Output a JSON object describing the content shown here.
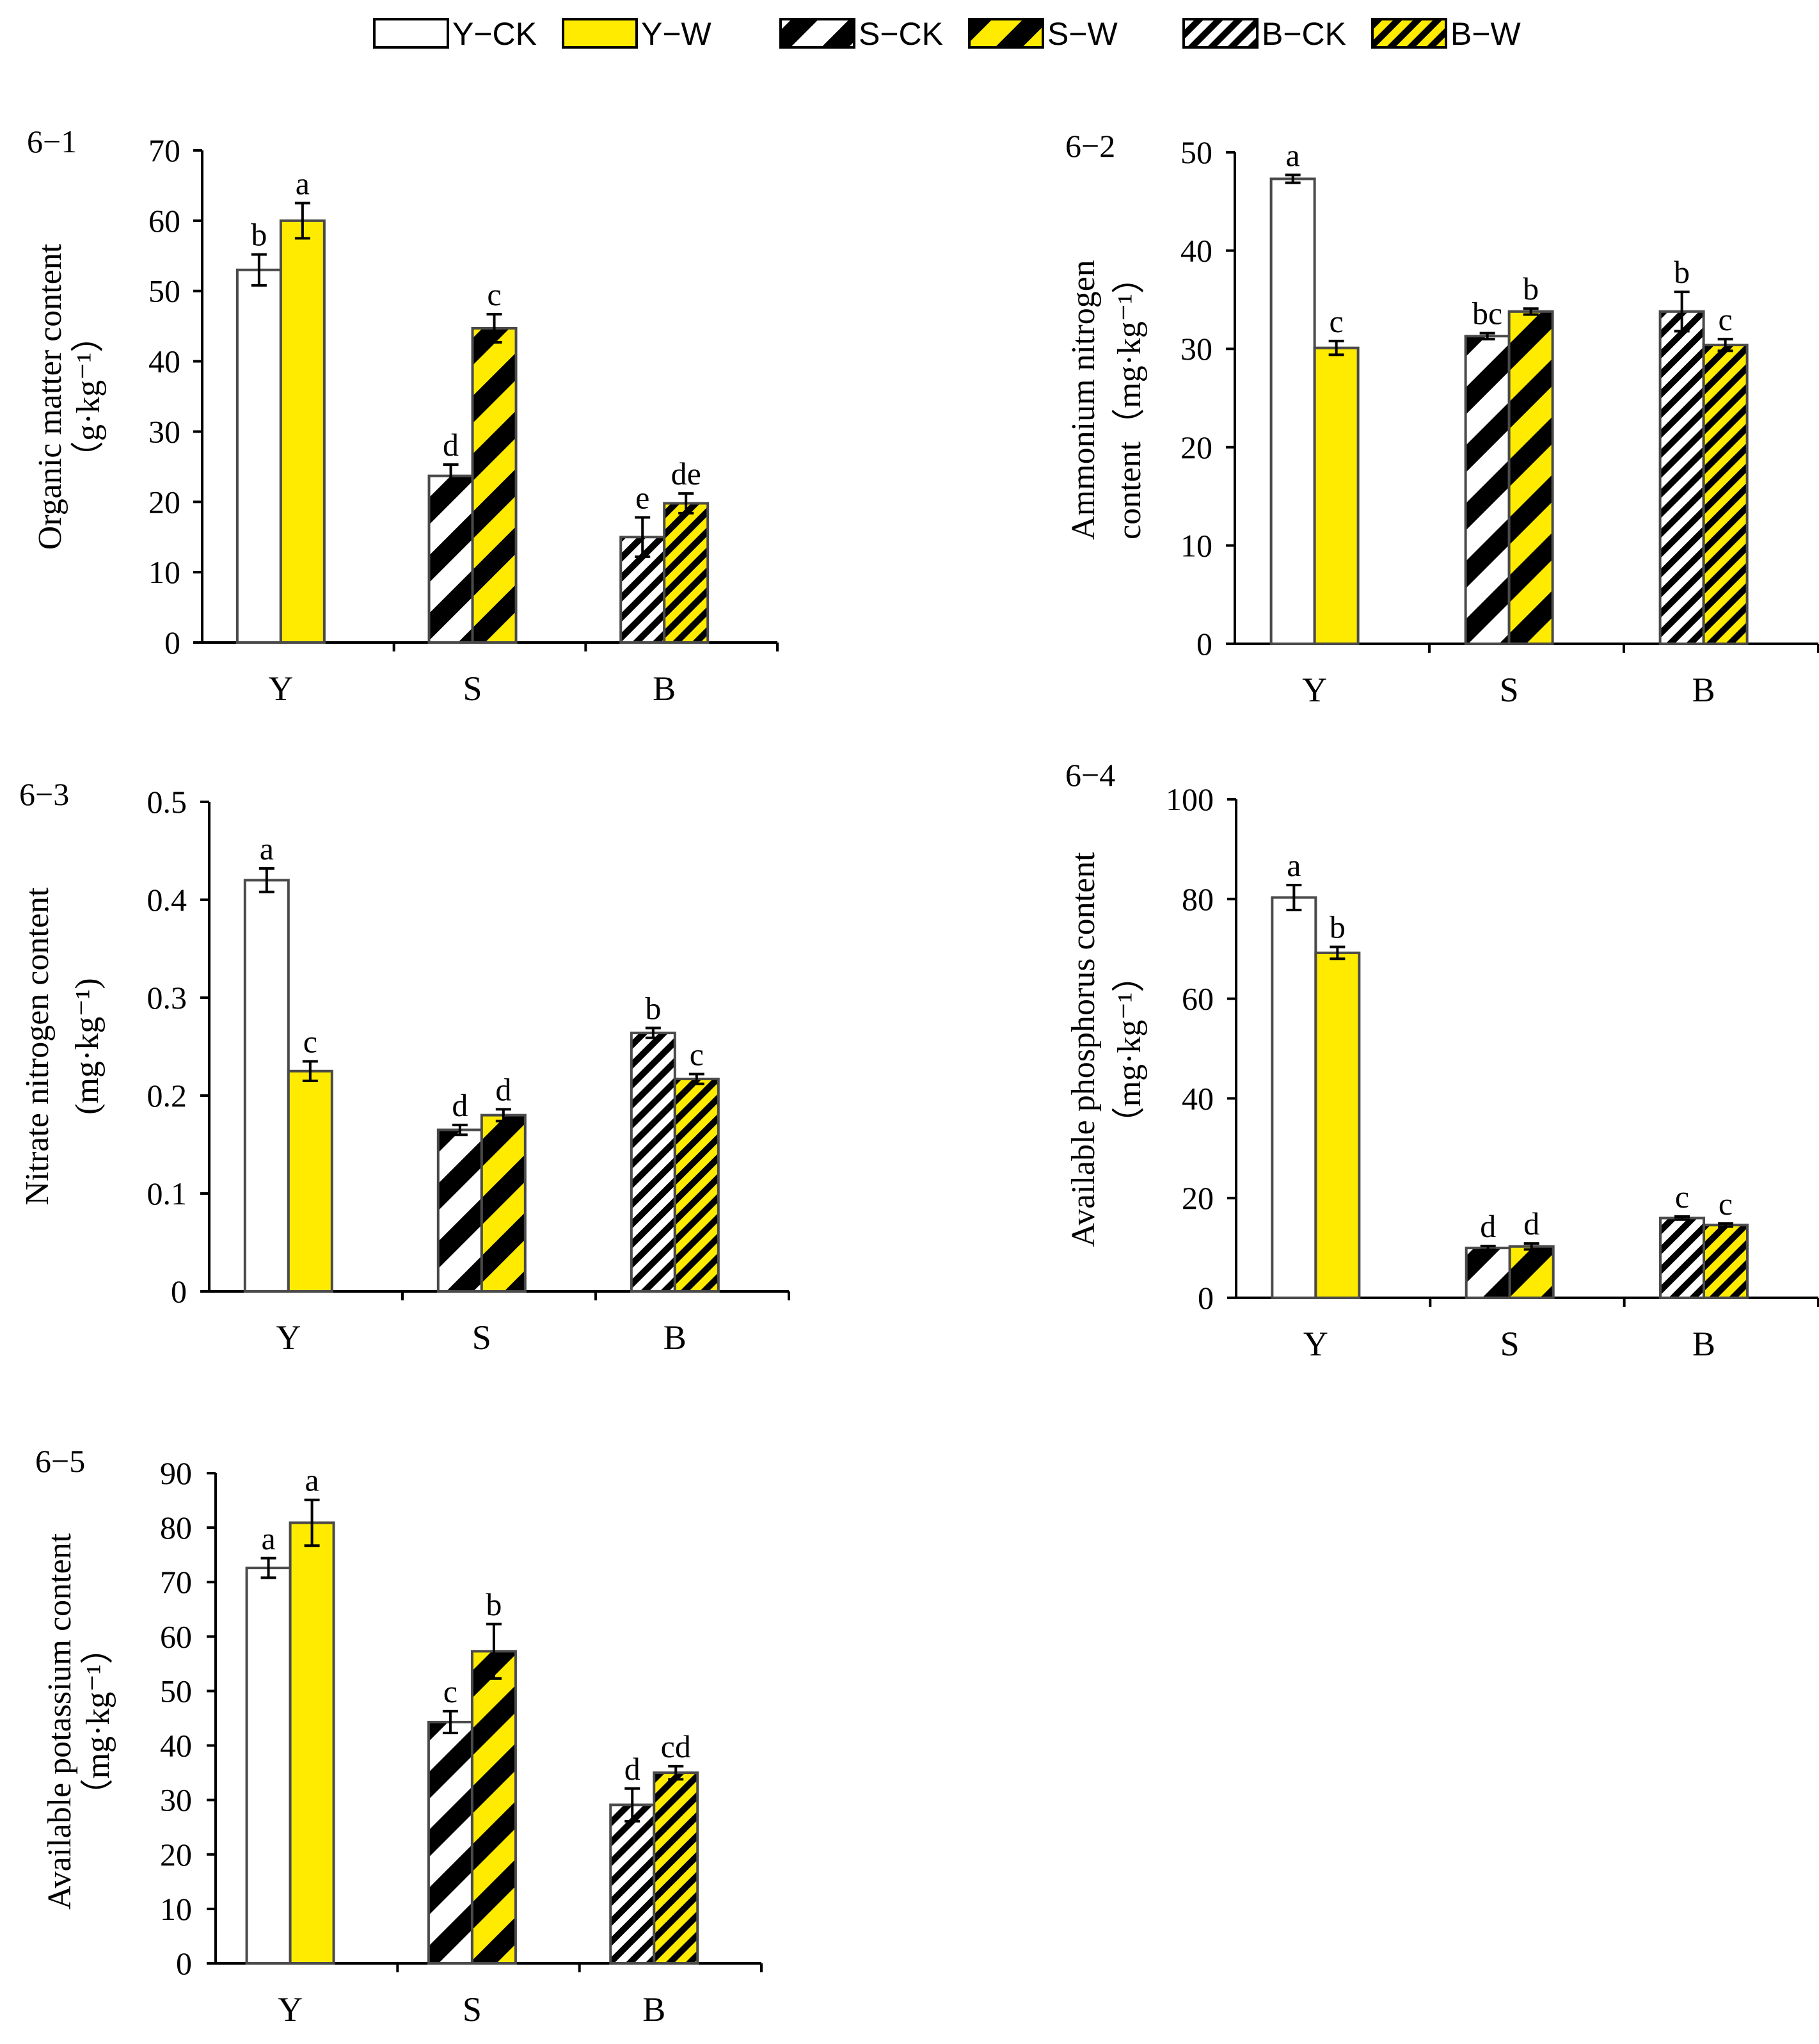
{
  "colors": {
    "yellow": "#FFEB00",
    "white": "#ffffff",
    "outline": "#4a4a4a",
    "axis": "#000000"
  },
  "legend": [
    {
      "key": "Y-CK",
      "label": "Y−CK",
      "fill": "white",
      "pattern": "none"
    },
    {
      "key": "Y-W",
      "label": "Y−W",
      "fill": "yellow",
      "pattern": "none"
    },
    {
      "key": "S-CK",
      "label": "S−CK",
      "fill": "white",
      "pattern": "wide"
    },
    {
      "key": "S-W",
      "label": "S−W",
      "fill": "yellow",
      "pattern": "wide"
    },
    {
      "key": "B-CK",
      "label": "B−CK",
      "fill": "white",
      "pattern": "narrow"
    },
    {
      "key": "B-W",
      "label": "B−W",
      "fill": "yellow",
      "pattern": "narrow"
    }
  ],
  "chart_data": [
    {
      "type": "bar",
      "panel": "6−1",
      "ylabel_lines": [
        "Organic matter content",
        "（g·kg⁻¹）"
      ],
      "ylim": [
        0,
        70
      ],
      "yticks": [
        "0",
        "10",
        "20",
        "30",
        "40",
        "50",
        "60",
        "70"
      ],
      "ytick_values": [
        0,
        10,
        20,
        30,
        40,
        50,
        60,
        70
      ],
      "categories": [
        "Y",
        "S",
        "B"
      ],
      "bars": [
        {
          "series": "Y-CK",
          "value": 53.0,
          "err": 2.2,
          "sig": "b"
        },
        {
          "series": "Y-W",
          "value": 60.0,
          "err": 2.5,
          "sig": "a"
        },
        {
          "series": "S-CK",
          "value": 23.7,
          "err": 1.6,
          "sig": "d"
        },
        {
          "series": "S-W",
          "value": 44.7,
          "err": 2.0,
          "sig": "c"
        },
        {
          "series": "B-CK",
          "value": 15.0,
          "err": 2.8,
          "sig": "e"
        },
        {
          "series": "B-W",
          "value": 19.8,
          "err": 1.4,
          "sig": "de"
        }
      ]
    },
    {
      "type": "bar",
      "panel": "6−2",
      "ylabel_lines": [
        "Ammonium nitrogen",
        "content（mg·kg⁻¹）"
      ],
      "ylim": [
        0,
        50
      ],
      "yticks": [
        "0",
        "10",
        "20",
        "30",
        "40",
        "50"
      ],
      "ytick_values": [
        0,
        10,
        20,
        30,
        40,
        50
      ],
      "categories": [
        "Y",
        "S",
        "B"
      ],
      "bars": [
        {
          "series": "Y-CK",
          "value": 47.3,
          "err": 0.4,
          "sig": "a"
        },
        {
          "series": "Y-W",
          "value": 30.1,
          "err": 0.7,
          "sig": "c"
        },
        {
          "series": "S-CK",
          "value": 31.3,
          "err": 0.3,
          "sig": "bc"
        },
        {
          "series": "S-W",
          "value": 33.8,
          "err": 0.3,
          "sig": "b"
        },
        {
          "series": "B-CK",
          "value": 33.8,
          "err": 2.0,
          "sig": "b"
        },
        {
          "series": "B-W",
          "value": 30.4,
          "err": 0.6,
          "sig": "c"
        }
      ]
    },
    {
      "type": "bar",
      "panel": "6−3",
      "ylabel_lines": [
        "Nitrate nitrogen content",
        "(mg·kg⁻¹)"
      ],
      "ylim": [
        0,
        0.5
      ],
      "yticks": [
        "0",
        "0.1",
        "0.2",
        "0.3",
        "0.4",
        "0.5"
      ],
      "ytick_values": [
        0,
        0.1,
        0.2,
        0.3,
        0.4,
        0.5
      ],
      "categories": [
        "Y",
        "S",
        "B"
      ],
      "bars": [
        {
          "series": "Y-CK",
          "value": 0.42,
          "err": 0.012,
          "sig": "a"
        },
        {
          "series": "Y-W",
          "value": 0.225,
          "err": 0.01,
          "sig": "c"
        },
        {
          "series": "S-CK",
          "value": 0.165,
          "err": 0.005,
          "sig": "d"
        },
        {
          "series": "S-W",
          "value": 0.18,
          "err": 0.006,
          "sig": "d"
        },
        {
          "series": "B-CK",
          "value": 0.264,
          "err": 0.005,
          "sig": "b"
        },
        {
          "series": "B-W",
          "value": 0.217,
          "err": 0.005,
          "sig": "c"
        }
      ]
    },
    {
      "type": "bar",
      "panel": "6−4",
      "ylabel_lines": [
        "Available phosphorus content",
        "（mg·kg⁻¹）"
      ],
      "ylim": [
        0,
        100
      ],
      "yticks": [
        "0",
        "20",
        "40",
        "60",
        "80",
        "100"
      ],
      "ytick_values": [
        0,
        20,
        40,
        60,
        80,
        100
      ],
      "categories": [
        "Y",
        "S",
        "B"
      ],
      "bars": [
        {
          "series": "Y-CK",
          "value": 80.3,
          "err": 2.5,
          "sig": "a"
        },
        {
          "series": "Y-W",
          "value": 69.2,
          "err": 1.2,
          "sig": "b"
        },
        {
          "series": "S-CK",
          "value": 10.0,
          "err": 0.4,
          "sig": "d"
        },
        {
          "series": "S-W",
          "value": 10.3,
          "err": 0.6,
          "sig": "d"
        },
        {
          "series": "B-CK",
          "value": 16.0,
          "err": 0.3,
          "sig": "c"
        },
        {
          "series": "B-W",
          "value": 14.6,
          "err": 0.3,
          "sig": "c"
        }
      ]
    },
    {
      "type": "bar",
      "panel": "6−5",
      "ylabel_lines": [
        "Available potassium content",
        "（mg·kg⁻¹）"
      ],
      "ylim": [
        0,
        90
      ],
      "yticks": [
        "0",
        "10",
        "20",
        "30",
        "40",
        "50",
        "60",
        "70",
        "80",
        "90"
      ],
      "ytick_values": [
        0,
        10,
        20,
        30,
        40,
        50,
        60,
        70,
        80,
        90
      ],
      "categories": [
        "Y",
        "S",
        "B"
      ],
      "bars": [
        {
          "series": "Y-CK",
          "value": 72.6,
          "err": 1.8,
          "sig": "a"
        },
        {
          "series": "Y-W",
          "value": 80.9,
          "err": 4.2,
          "sig": "a"
        },
        {
          "series": "S-CK",
          "value": 44.3,
          "err": 2.0,
          "sig": "c"
        },
        {
          "series": "S-W",
          "value": 57.3,
          "err": 5.0,
          "sig": "b"
        },
        {
          "series": "B-CK",
          "value": 29.1,
          "err": 3.0,
          "sig": "d"
        },
        {
          "series": "B-W",
          "value": 35.0,
          "err": 1.2,
          "sig": "cd"
        }
      ]
    }
  ]
}
